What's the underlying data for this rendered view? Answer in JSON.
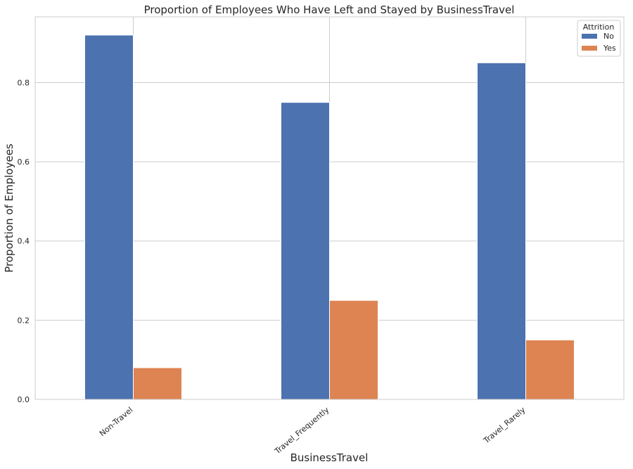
{
  "chart_data": {
    "type": "bar",
    "title": "Proportion of Employees Who Have Left and Stayed by BusinessTravel",
    "xlabel": "BusinessTravel",
    "ylabel": "Proportion of Employees",
    "categories": [
      "Non-Travel",
      "Travel_Frequently",
      "Travel_Rarely"
    ],
    "series": [
      {
        "name": "No",
        "values": [
          0.92,
          0.75,
          0.85
        ],
        "color": "#4c72b0"
      },
      {
        "name": "Yes",
        "values": [
          0.08,
          0.25,
          0.15
        ],
        "color": "#dd8452"
      }
    ],
    "ylim": [
      0,
      0.966
    ],
    "yticks": [
      "0.0",
      "0.2",
      "0.4",
      "0.6",
      "0.8"
    ],
    "grid": true,
    "legend": {
      "title": "Attrition",
      "position": "top-right"
    }
  }
}
